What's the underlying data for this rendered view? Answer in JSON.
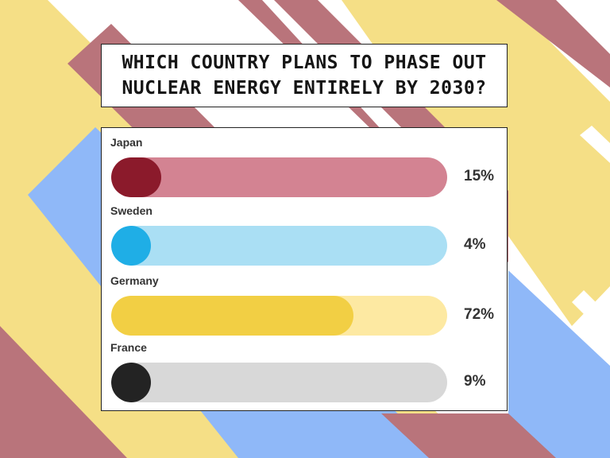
{
  "title": "WHICH COUNTRY PLANS TO PHASE OUT NUCLEAR ENERGY ENTIRELY BY 2030?",
  "options": [
    {
      "label": "Japan",
      "percent_label": "15%",
      "value": 15,
      "track_color": "#d38392",
      "fill_color": "#8b1a2b"
    },
    {
      "label": "Sweden",
      "percent_label": "4%",
      "value": 4,
      "track_color": "#aadff4",
      "fill_color": "#1faee6"
    },
    {
      "label": "Germany",
      "percent_label": "72%",
      "value": 72,
      "track_color": "#fde9a2",
      "fill_color": "#f2cf44"
    },
    {
      "label": "France",
      "percent_label": "9%",
      "value": 9,
      "track_color": "#d8d8d8",
      "fill_color": "#232323"
    }
  ],
  "background_colors": {
    "rose": "#b9747b",
    "yellow": "#f5df86",
    "blue": "#8fb8f8",
    "white": "#ffffff"
  }
}
